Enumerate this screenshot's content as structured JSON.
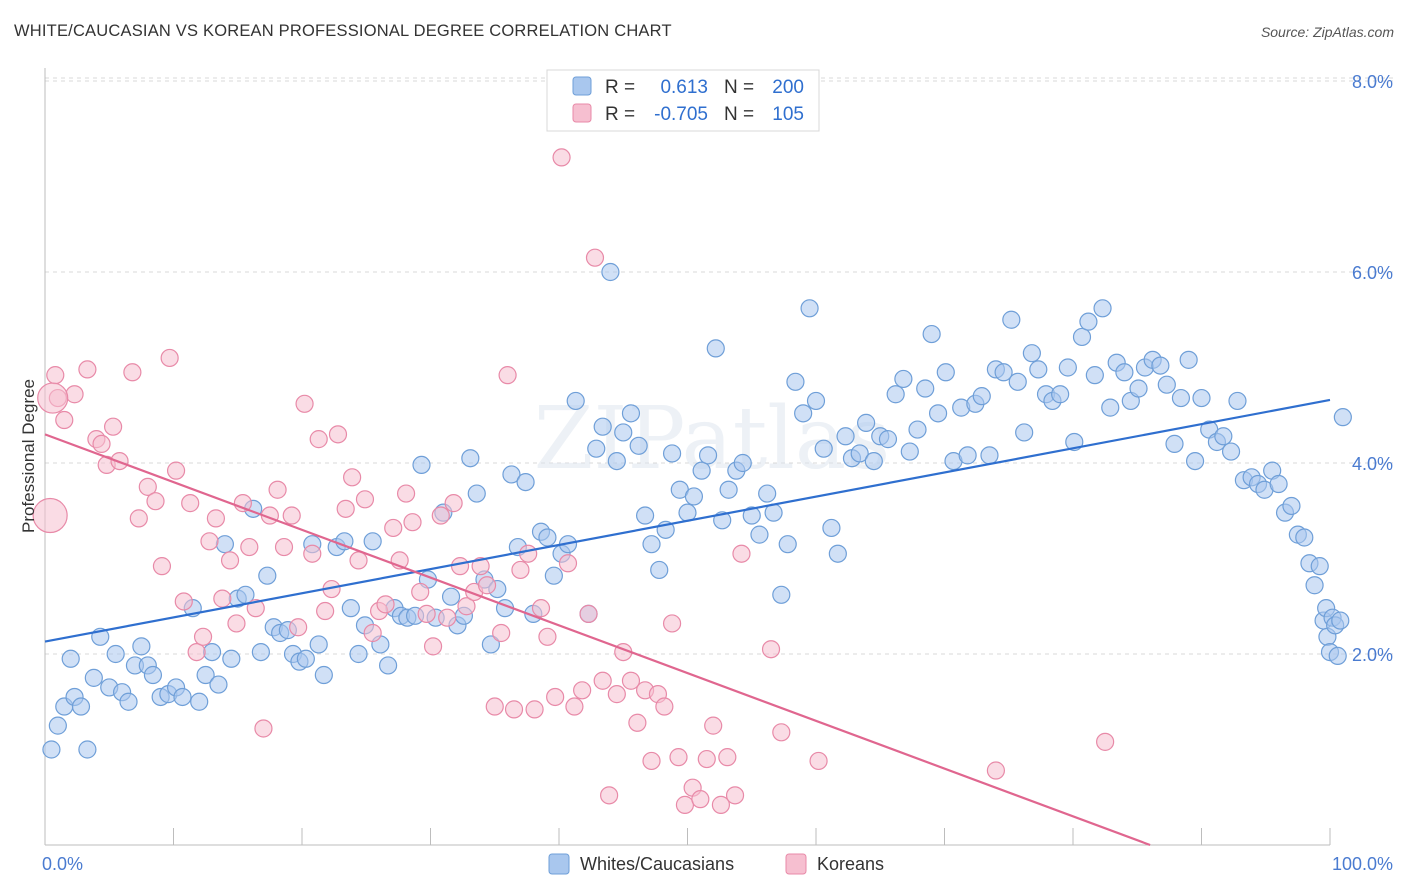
{
  "title": "WHITE/CAUCASIAN VS KOREAN PROFESSIONAL DEGREE CORRELATION CHART",
  "source": "Source: ZipAtlas.com",
  "colors": {
    "blue_fill": "#a9c7ee",
    "blue_stroke": "#6f9fd8",
    "blue_line": "#2f6fcf",
    "pink_fill": "#f6bfd0",
    "pink_stroke": "#e88aa8",
    "pink_line": "#e0668f",
    "tick_text": "#4a7bd0"
  },
  "legend": {
    "rows": [
      {
        "r_label": "R =",
        "r_value": "0.613",
        "n_label": "N =",
        "n_value": "200"
      },
      {
        "r_label": "R =",
        "r_value": "-0.705",
        "n_label": "N =",
        "n_value": "105"
      }
    ]
  },
  "watermark": "ZIPatlas",
  "chart_data": {
    "type": "scatter",
    "ylabel": "Professional Degree",
    "x_tick_labels": [
      "0.0%",
      "100.0%"
    ],
    "y_tick_labels": [
      "2.0%",
      "4.0%",
      "6.0%",
      "8.0%"
    ],
    "xlim": [
      0,
      100
    ],
    "ylim": [
      0,
      8.3
    ],
    "legend_position": "bottom-center",
    "series": [
      {
        "name": "Whites/Caucasians",
        "trend": {
          "x0": 0,
          "y0": 2.13,
          "x1": 100,
          "y1": 4.66
        },
        "points": [
          [
            0.5,
            1.0
          ],
          [
            1,
            1.25
          ],
          [
            1.5,
            1.45
          ],
          [
            2,
            1.95
          ],
          [
            2.3,
            1.55
          ],
          [
            2.8,
            1.45
          ],
          [
            3.3,
            1.0
          ],
          [
            3.8,
            1.75
          ],
          [
            4.3,
            2.18
          ],
          [
            5,
            1.65
          ],
          [
            5.5,
            2.0
          ],
          [
            6,
            1.6
          ],
          [
            6.5,
            1.5
          ],
          [
            7,
            1.88
          ],
          [
            7.5,
            2.08
          ],
          [
            8,
            1.88
          ],
          [
            8.4,
            1.78
          ],
          [
            9,
            1.55
          ],
          [
            9.6,
            1.58
          ],
          [
            10.2,
            1.65
          ],
          [
            10.7,
            1.55
          ],
          [
            11.5,
            2.48
          ],
          [
            12,
            1.5
          ],
          [
            12.5,
            1.78
          ],
          [
            13,
            2.02
          ],
          [
            13.5,
            1.68
          ],
          [
            14,
            3.15
          ],
          [
            14.5,
            1.95
          ],
          [
            15,
            2.58
          ],
          [
            15.6,
            2.62
          ],
          [
            16.2,
            3.52
          ],
          [
            16.8,
            2.02
          ],
          [
            17.3,
            2.82
          ],
          [
            17.8,
            2.28
          ],
          [
            18.3,
            2.22
          ],
          [
            18.9,
            2.25
          ],
          [
            19.3,
            2.0
          ],
          [
            19.8,
            1.92
          ],
          [
            20.3,
            1.95
          ],
          [
            20.8,
            3.15
          ],
          [
            21.3,
            2.1
          ],
          [
            21.7,
            1.78
          ],
          [
            22.7,
            3.12
          ],
          [
            23.3,
            3.18
          ],
          [
            23.8,
            2.48
          ],
          [
            24.4,
            2.0
          ],
          [
            24.9,
            2.3
          ],
          [
            25.5,
            3.18
          ],
          [
            26.1,
            2.1
          ],
          [
            26.7,
            1.88
          ],
          [
            27.2,
            2.48
          ],
          [
            27.7,
            2.4
          ],
          [
            28.2,
            2.38
          ],
          [
            28.8,
            2.4
          ],
          [
            29.3,
            3.98
          ],
          [
            29.8,
            2.78
          ],
          [
            30.4,
            2.38
          ],
          [
            31,
            3.48
          ],
          [
            31.6,
            2.6
          ],
          [
            32.1,
            2.3
          ],
          [
            32.6,
            2.4
          ],
          [
            33.1,
            4.05
          ],
          [
            33.6,
            3.68
          ],
          [
            34.2,
            2.78
          ],
          [
            34.7,
            2.1
          ],
          [
            35.2,
            2.68
          ],
          [
            35.8,
            2.48
          ],
          [
            36.3,
            3.88
          ],
          [
            36.8,
            3.12
          ],
          [
            37.4,
            3.8
          ],
          [
            38,
            2.42
          ],
          [
            38.6,
            3.28
          ],
          [
            39.1,
            3.22
          ],
          [
            39.6,
            2.82
          ],
          [
            40.2,
            3.05
          ],
          [
            40.7,
            3.15
          ],
          [
            41.3,
            4.65
          ],
          [
            42.3,
            2.42
          ],
          [
            42.9,
            4.15
          ],
          [
            43.4,
            4.38
          ],
          [
            44,
            6.0
          ],
          [
            44.5,
            4.02
          ],
          [
            45,
            4.32
          ],
          [
            45.6,
            4.52
          ],
          [
            46.2,
            4.18
          ],
          [
            46.7,
            3.45
          ],
          [
            47.2,
            3.15
          ],
          [
            47.8,
            2.88
          ],
          [
            48.3,
            3.3
          ],
          [
            48.8,
            4.1
          ],
          [
            49.4,
            3.72
          ],
          [
            50,
            3.48
          ],
          [
            50.5,
            3.65
          ],
          [
            51.1,
            3.92
          ],
          [
            51.6,
            4.08
          ],
          [
            52.2,
            5.2
          ],
          [
            52.7,
            3.4
          ],
          [
            53.2,
            3.72
          ],
          [
            53.8,
            3.92
          ],
          [
            54.3,
            4.0
          ],
          [
            55,
            3.45
          ],
          [
            55.6,
            3.25
          ],
          [
            56.2,
            3.68
          ],
          [
            56.7,
            3.48
          ],
          [
            57.3,
            2.62
          ],
          [
            57.8,
            3.15
          ],
          [
            58.4,
            4.85
          ],
          [
            59,
            4.52
          ],
          [
            59.5,
            5.62
          ],
          [
            60,
            4.65
          ],
          [
            60.6,
            4.15
          ],
          [
            61.2,
            3.32
          ],
          [
            61.7,
            3.05
          ],
          [
            62.3,
            4.28
          ],
          [
            62.8,
            4.05
          ],
          [
            63.4,
            4.1
          ],
          [
            63.9,
            4.42
          ],
          [
            64.5,
            4.02
          ],
          [
            65,
            4.28
          ],
          [
            65.6,
            4.25
          ],
          [
            66.2,
            4.72
          ],
          [
            66.8,
            4.88
          ],
          [
            67.3,
            4.12
          ],
          [
            67.9,
            4.35
          ],
          [
            68.5,
            4.78
          ],
          [
            69,
            5.35
          ],
          [
            69.5,
            4.52
          ],
          [
            70.1,
            4.95
          ],
          [
            70.7,
            4.02
          ],
          [
            71.3,
            4.58
          ],
          [
            71.8,
            4.08
          ],
          [
            72.4,
            4.62
          ],
          [
            72.9,
            4.7
          ],
          [
            73.5,
            4.08
          ],
          [
            74,
            4.98
          ],
          [
            74.6,
            4.95
          ],
          [
            75.2,
            5.5
          ],
          [
            75.7,
            4.85
          ],
          [
            76.2,
            4.32
          ],
          [
            76.8,
            5.15
          ],
          [
            77.3,
            4.98
          ],
          [
            77.9,
            4.72
          ],
          [
            78.4,
            4.65
          ],
          [
            79,
            4.72
          ],
          [
            79.6,
            5.0
          ],
          [
            80.1,
            4.22
          ],
          [
            80.7,
            5.32
          ],
          [
            81.2,
            5.48
          ],
          [
            81.7,
            4.92
          ],
          [
            82.3,
            5.62
          ],
          [
            82.9,
            4.58
          ],
          [
            83.4,
            5.05
          ],
          [
            84,
            4.95
          ],
          [
            84.5,
            4.65
          ],
          [
            85.1,
            4.78
          ],
          [
            85.6,
            5.0
          ],
          [
            86.2,
            5.08
          ],
          [
            86.8,
            5.02
          ],
          [
            87.3,
            4.82
          ],
          [
            87.9,
            4.2
          ],
          [
            88.4,
            4.68
          ],
          [
            89,
            5.08
          ],
          [
            89.5,
            4.02
          ],
          [
            90,
            4.68
          ],
          [
            90.6,
            4.35
          ],
          [
            91.2,
            4.22
          ],
          [
            91.7,
            4.28
          ],
          [
            92.3,
            4.12
          ],
          [
            92.8,
            4.65
          ],
          [
            93.3,
            3.82
          ],
          [
            93.9,
            3.85
          ],
          [
            94.4,
            3.78
          ],
          [
            94.9,
            3.72
          ],
          [
            95.5,
            3.92
          ],
          [
            96,
            3.78
          ],
          [
            96.5,
            3.48
          ],
          [
            97,
            3.55
          ],
          [
            97.5,
            3.25
          ],
          [
            98,
            3.22
          ],
          [
            98.4,
            2.95
          ],
          [
            98.8,
            2.72
          ],
          [
            99.2,
            2.92
          ],
          [
            99.5,
            2.35
          ],
          [
            99.7,
            2.48
          ],
          [
            99.8,
            2.18
          ],
          [
            100,
            2.02
          ],
          [
            100.2,
            2.38
          ],
          [
            100.4,
            2.3
          ],
          [
            100.6,
            1.98
          ],
          [
            100.8,
            2.35
          ],
          [
            101,
            4.48
          ]
        ]
      },
      {
        "name": "Koreans",
        "trend": {
          "x0": 0,
          "y0": 4.3,
          "x1": 86,
          "y1": 0.0
        },
        "points": [
          [
            0.8,
            4.92
          ],
          [
            1,
            4.68
          ],
          [
            1.5,
            4.45
          ],
          [
            2.3,
            4.72
          ],
          [
            3.3,
            4.98
          ],
          [
            4,
            4.25
          ],
          [
            4.4,
            4.2
          ],
          [
            4.8,
            3.98
          ],
          [
            5.3,
            4.38
          ],
          [
            5.8,
            4.02
          ],
          [
            6.8,
            4.95
          ],
          [
            7.3,
            3.42
          ],
          [
            8,
            3.75
          ],
          [
            8.6,
            3.6
          ],
          [
            9.1,
            2.92
          ],
          [
            9.7,
            5.1
          ],
          [
            10.2,
            3.92
          ],
          [
            10.8,
            2.55
          ],
          [
            11.3,
            3.58
          ],
          [
            11.8,
            2.02
          ],
          [
            12.3,
            2.18
          ],
          [
            12.8,
            3.18
          ],
          [
            13.3,
            3.42
          ],
          [
            13.8,
            2.58
          ],
          [
            14.4,
            2.98
          ],
          [
            14.9,
            2.32
          ],
          [
            15.4,
            3.58
          ],
          [
            15.9,
            3.12
          ],
          [
            16.4,
            2.48
          ],
          [
            17,
            1.22
          ],
          [
            17.5,
            3.45
          ],
          [
            18.1,
            3.72
          ],
          [
            18.6,
            3.12
          ],
          [
            19.2,
            3.45
          ],
          [
            19.7,
            2.28
          ],
          [
            20.2,
            4.62
          ],
          [
            20.8,
            3.05
          ],
          [
            21.3,
            4.25
          ],
          [
            21.8,
            2.45
          ],
          [
            22.3,
            2.68
          ],
          [
            22.8,
            4.3
          ],
          [
            23.4,
            3.52
          ],
          [
            23.9,
            3.85
          ],
          [
            24.4,
            2.98
          ],
          [
            24.9,
            3.62
          ],
          [
            25.5,
            2.22
          ],
          [
            26,
            2.45
          ],
          [
            26.5,
            2.52
          ],
          [
            27.1,
            3.32
          ],
          [
            27.6,
            2.98
          ],
          [
            28.1,
            3.68
          ],
          [
            28.6,
            3.38
          ],
          [
            29.2,
            2.65
          ],
          [
            29.7,
            2.42
          ],
          [
            30.2,
            2.08
          ],
          [
            30.8,
            3.45
          ],
          [
            31.3,
            2.38
          ],
          [
            31.8,
            3.58
          ],
          [
            32.3,
            2.92
          ],
          [
            32.8,
            2.5
          ],
          [
            33.4,
            2.65
          ],
          [
            33.9,
            2.92
          ],
          [
            34.4,
            2.72
          ],
          [
            35,
            1.45
          ],
          [
            35.5,
            2.22
          ],
          [
            36,
            4.92
          ],
          [
            36.5,
            1.42
          ],
          [
            37,
            2.88
          ],
          [
            37.6,
            3.05
          ],
          [
            38.1,
            1.42
          ],
          [
            38.6,
            2.48
          ],
          [
            39.1,
            2.18
          ],
          [
            39.7,
            1.55
          ],
          [
            40.2,
            7.2
          ],
          [
            40.7,
            2.95
          ],
          [
            41.2,
            1.45
          ],
          [
            41.8,
            1.62
          ],
          [
            42.3,
            2.42
          ],
          [
            42.8,
            6.15
          ],
          [
            43.4,
            1.72
          ],
          [
            43.9,
            0.52
          ],
          [
            44.5,
            1.58
          ],
          [
            45,
            2.02
          ],
          [
            45.6,
            1.72
          ],
          [
            46.1,
            1.28
          ],
          [
            46.7,
            1.62
          ],
          [
            47.2,
            0.88
          ],
          [
            47.7,
            1.58
          ],
          [
            48.2,
            1.45
          ],
          [
            48.8,
            2.32
          ],
          [
            49.3,
            0.92
          ],
          [
            49.8,
            0.42
          ],
          [
            50.4,
            0.6
          ],
          [
            51,
            0.48
          ],
          [
            51.5,
            0.9
          ],
          [
            52,
            1.25
          ],
          [
            52.6,
            0.42
          ],
          [
            53.1,
            0.92
          ],
          [
            53.7,
            0.52
          ],
          [
            54.2,
            3.05
          ],
          [
            56.5,
            2.05
          ],
          [
            57.3,
            1.18
          ],
          [
            60.2,
            0.88
          ],
          [
            74,
            0.78
          ],
          [
            82.5,
            1.08
          ]
        ]
      }
    ]
  }
}
